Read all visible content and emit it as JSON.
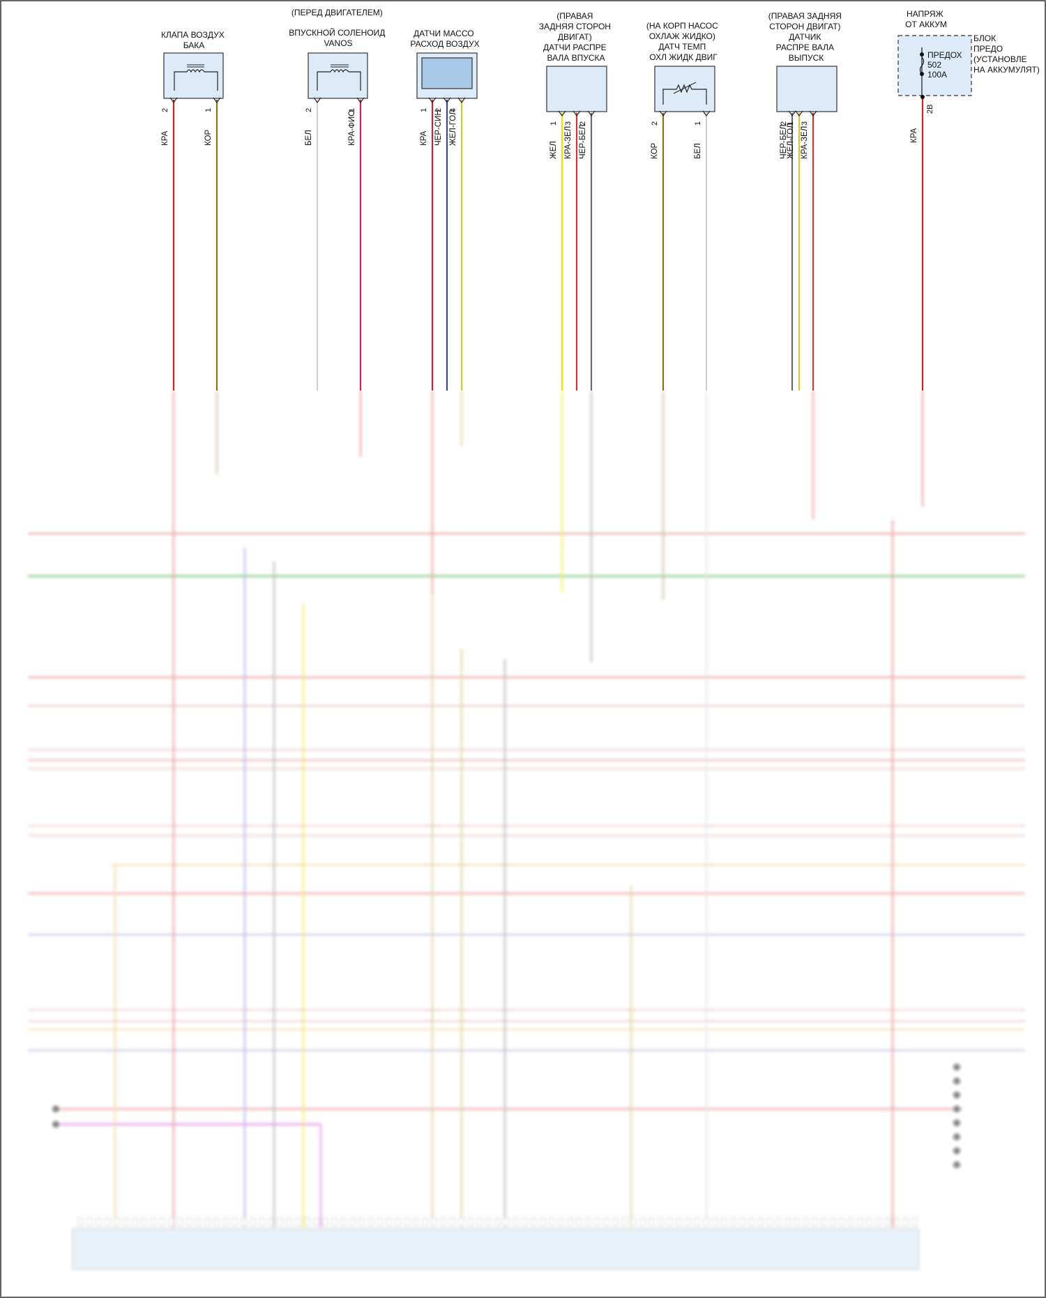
{
  "components": [
    {
      "id": "purge-valve",
      "lines": [
        "КЛАПА ВОЗДУХ",
        "БАКА"
      ]
    },
    {
      "id": "vanos-solenoid",
      "lines": [
        "(ПЕРЕД ДВИГАТЕЛЕМ)",
        "",
        "ВПУСКНОЙ СОЛЕНОИД",
        "VANOS"
      ]
    },
    {
      "id": "maf-sensor",
      "lines": [
        "ДАТЧИ МАССО",
        "РАСХОД ВОЗДУХ"
      ]
    },
    {
      "id": "intake-cam-sensor",
      "lines": [
        "(ПРАВАЯ",
        "ЗАДНЯЯ СТОРОН",
        "ДВИГАТ)",
        "ДАТЧИ РАСПРЕ",
        "ВАЛА ВПУСКА"
      ]
    },
    {
      "id": "coolant-temp-sensor",
      "lines": [
        "(НА КОРП НАСОС",
        "ОХЛАЖ ЖИДКО)",
        "ДАТЧ ТЕМП",
        "ОХЛ ЖИДК ДВИГ"
      ]
    },
    {
      "id": "exhaust-cam-sensor",
      "lines": [
        "(ПРАВАЯ ЗАДНЯЯ",
        "СТОРОН ДВИГАТ)",
        "ДАТЧИК",
        "РАСПРЕ ВАЛА",
        "ВЫПУСК"
      ]
    },
    {
      "id": "battery-voltage",
      "lines": [
        "НАПРЯЖ",
        "ОТ АККУМ"
      ]
    }
  ],
  "fuse_block": {
    "lines": [
      "БЛОК",
      "ПРЕДО",
      "(УСТАНОВЛЕ",
      "НА АККУМУЛЯТ)"
    ],
    "fuse_label": "ПРЕДОХ",
    "fuse_number": "502",
    "fuse_rating": "100A",
    "terminal": "2B"
  },
  "wires": [
    {
      "pin": "2",
      "label": "КРА",
      "color": "#cc2222"
    },
    {
      "pin": "1",
      "label": "КОР",
      "color": "#8a6d1a"
    },
    {
      "pin": "2",
      "label": "БЕЛ",
      "color": "#cfcfcf"
    },
    {
      "pin": "1",
      "label": "КРА-ФИО",
      "color": "#cc2255"
    },
    {
      "pin": "1",
      "label": "КРА",
      "color": "#cc2222"
    },
    {
      "pin": "2",
      "label": "ЧЕР-СИН",
      "color": "#3c4a88"
    },
    {
      "pin": "4",
      "label": "ЖЕЛ-ГОЛ",
      "color": "#d8c838"
    },
    {
      "pin": "1",
      "label": "ЖЕЛ",
      "color": "#f0e000"
    },
    {
      "pin": "3",
      "label": "КРА-ЗЕЛ",
      "color": "#c83a2a"
    },
    {
      "pin": "2",
      "label": "ЧЕР-БЕЛ",
      "color": "#6a6a6a"
    },
    {
      "pin": "2",
      "label": "КОР",
      "color": "#8a6d1a"
    },
    {
      "pin": "1",
      "label": "БЕЛ",
      "color": "#cfcfcf"
    },
    {
      "pin": "2",
      "label": "ЧЕР-БЕЛ",
      "color": "#6a6a6a"
    },
    {
      "pin": "1",
      "label": "ЖЕЛ-ГОЛ",
      "color": "#d8c838"
    },
    {
      "pin": "3",
      "label": "КРА-ЗЕЛ",
      "color": "#c83a2a"
    },
    {
      "pin": "",
      "label": "КРА",
      "color": "#cc2222"
    }
  ],
  "colors": {
    "connector_fill": "#ddeaf7",
    "maf_face": "#a8c8e8",
    "grid_green": "#3aa83a",
    "grid_red": "#e06060",
    "grid_pink": "#e0a0a0",
    "grid_orange": "#f0c070",
    "grid_blue": "#8888dd",
    "grid_magenta": "#dd55dd",
    "ecu_fill": "#d6e8f8"
  }
}
